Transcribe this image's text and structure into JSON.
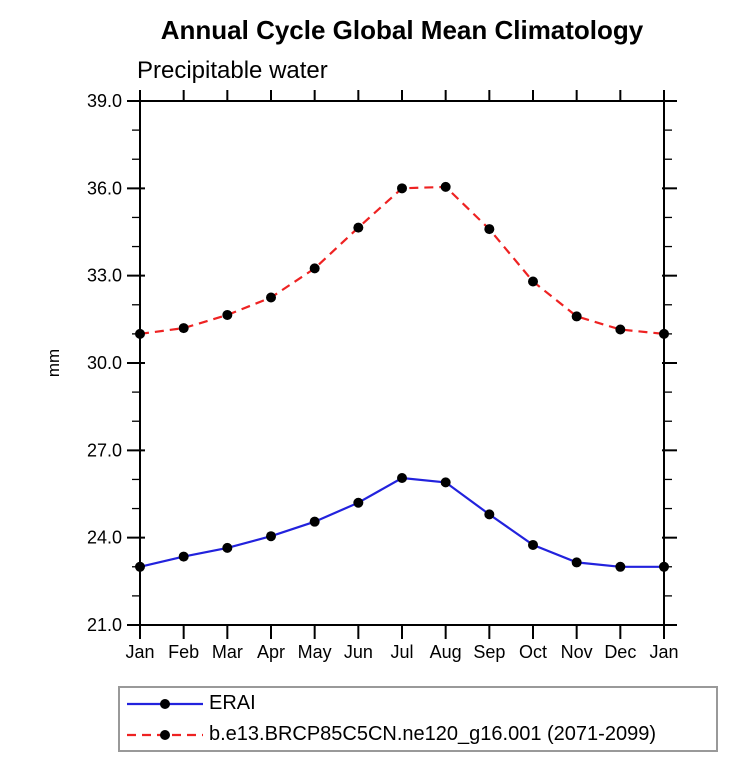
{
  "chart_data": {
    "type": "line",
    "title": "Annual Cycle Global Mean Climatology",
    "subtitle": "Precipitable water",
    "ylabel": "mm",
    "xlabel": "",
    "categories": [
      "Jan",
      "Feb",
      "Mar",
      "Apr",
      "May",
      "Jun",
      "Jul",
      "Aug",
      "Sep",
      "Oct",
      "Nov",
      "Dec",
      "Jan"
    ],
    "ylim": [
      21.0,
      39.0
    ],
    "ytick_step": 3.0,
    "yminor_step": 1.0,
    "ytick_format_decimals": 1,
    "grid": false,
    "legend_position": "bottom",
    "axis_color": "#000000",
    "marker_color": "#000000",
    "legend_border_color": "#999999",
    "series": [
      {
        "name": "ERAI",
        "color": "#2222dd",
        "style": "solid",
        "marker": "circle",
        "values": [
          23.0,
          23.35,
          23.65,
          24.05,
          24.55,
          25.2,
          26.05,
          25.9,
          24.8,
          23.75,
          23.15,
          23.0,
          23.0
        ]
      },
      {
        "name": "b.e13.BRCP85C5CN.ne120_g16.001 (2071-2099)",
        "color": "#ee2222",
        "style": "dashed",
        "marker": "circle",
        "values": [
          31.0,
          31.2,
          31.65,
          32.25,
          33.25,
          34.65,
          36.0,
          36.05,
          34.6,
          32.8,
          31.6,
          31.15,
          31.0
        ]
      }
    ]
  }
}
